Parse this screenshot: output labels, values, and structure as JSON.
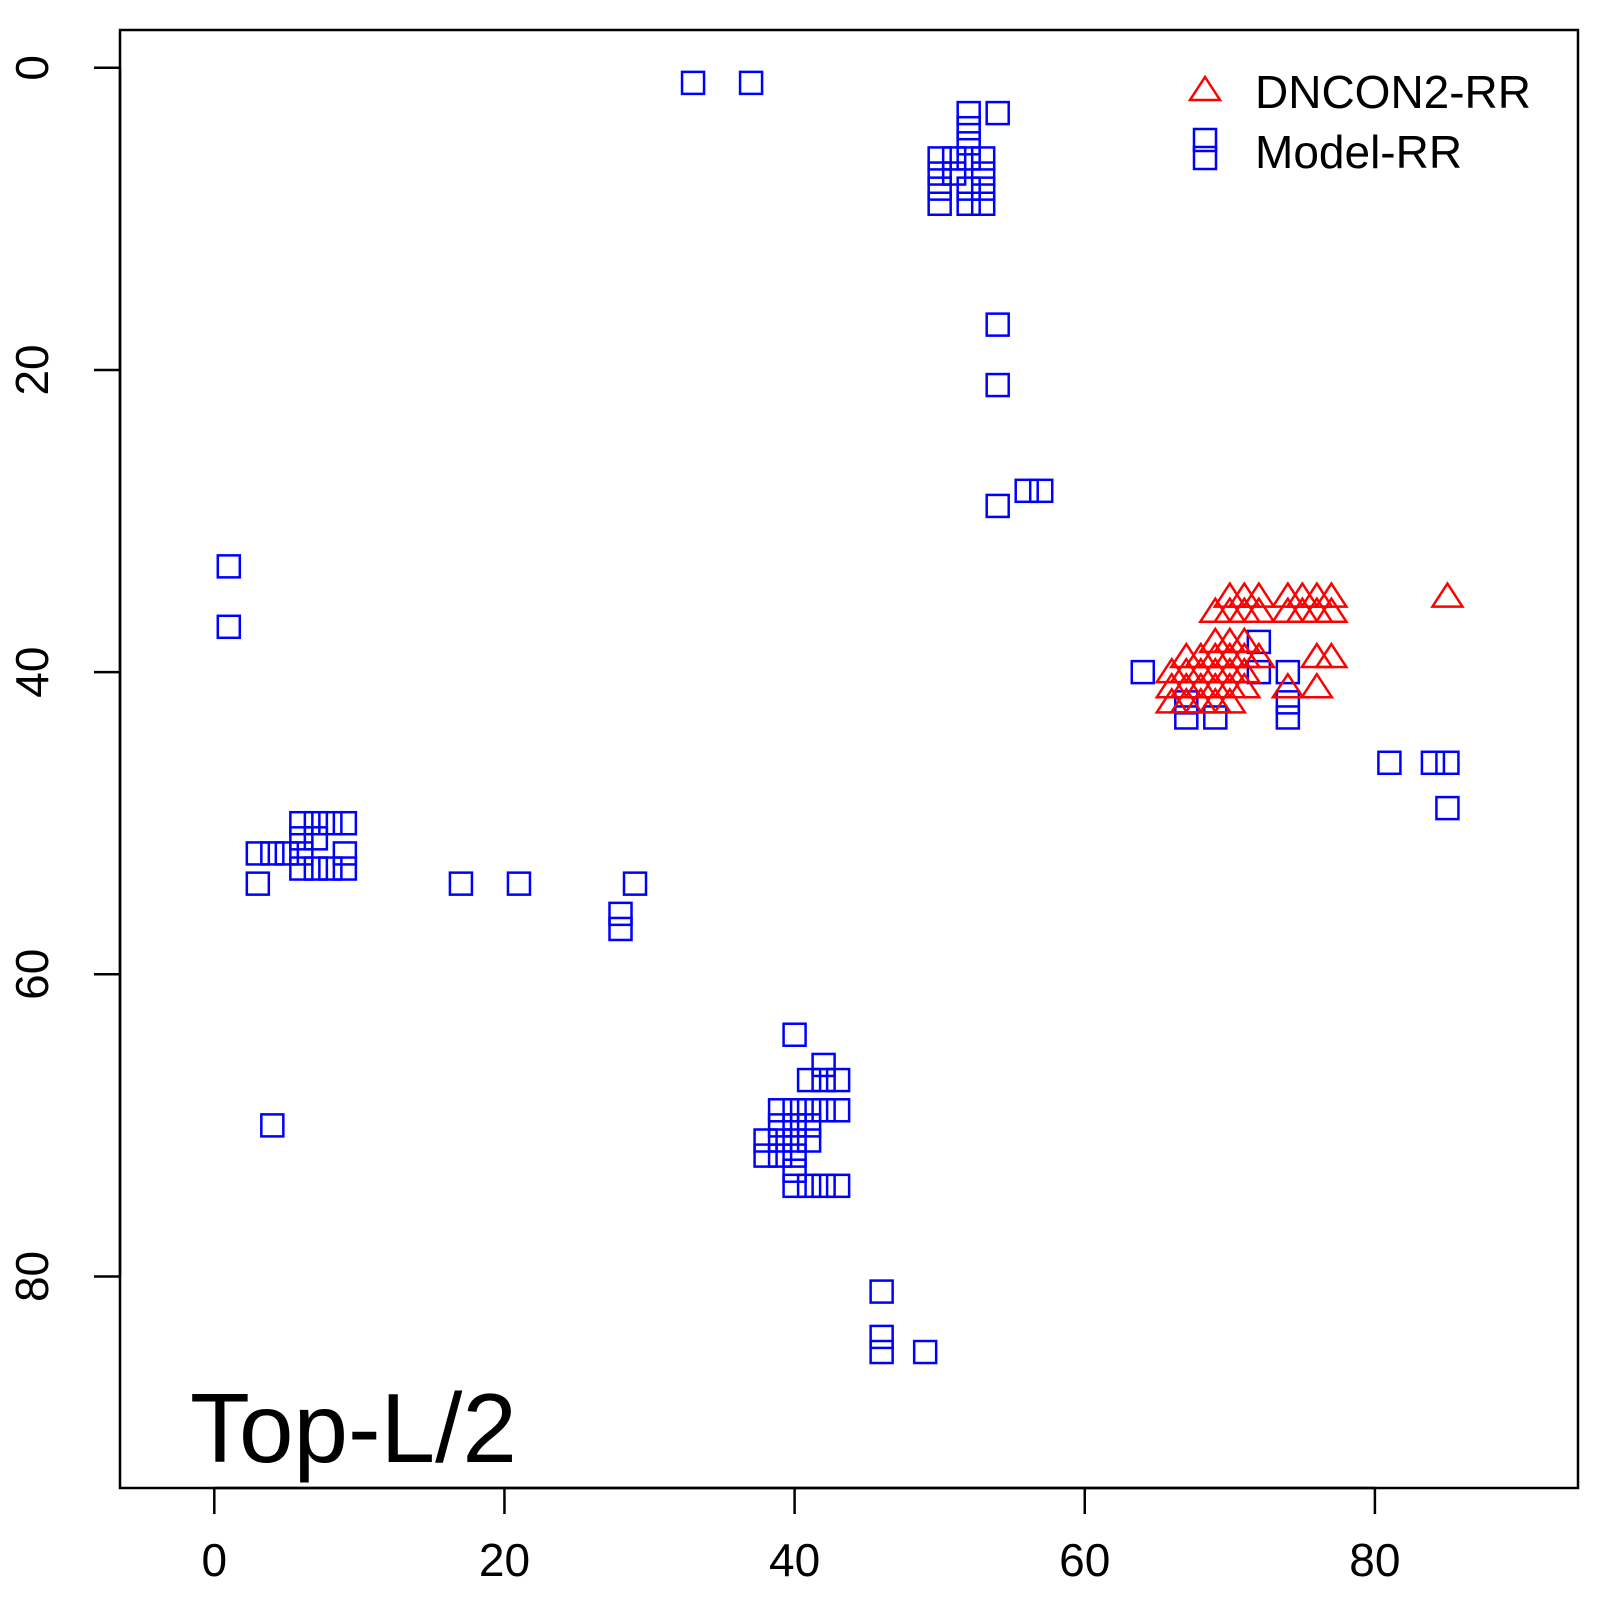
{
  "chart_data": {
    "type": "scatter",
    "title": "",
    "xlabel": "",
    "ylabel": "",
    "xlim": [
      -6.5,
      94
    ],
    "ylim": [
      94,
      -2.5
    ],
    "y_axis_reversed": true,
    "grid": false,
    "legend_position": "top-right",
    "annotation": "Top-L/2",
    "x_ticks": [
      0,
      20,
      40,
      60,
      80
    ],
    "y_ticks": [
      0,
      20,
      40,
      60,
      80
    ],
    "series": [
      {
        "name": "DNCON2-RR",
        "marker": "triangle",
        "color": "#ff0000",
        "points": [
          [
            70,
            35
          ],
          [
            71,
            35
          ],
          [
            72,
            35
          ],
          [
            74,
            35
          ],
          [
            75,
            35
          ],
          [
            76,
            35
          ],
          [
            77,
            35
          ],
          [
            85,
            35
          ],
          [
            69,
            36
          ],
          [
            70,
            36
          ],
          [
            71,
            36
          ],
          [
            72,
            36
          ],
          [
            74,
            36
          ],
          [
            75,
            36
          ],
          [
            76,
            36
          ],
          [
            77,
            36
          ],
          [
            69,
            38
          ],
          [
            70,
            38
          ],
          [
            71,
            38
          ],
          [
            67,
            39
          ],
          [
            68,
            39
          ],
          [
            69,
            39
          ],
          [
            70,
            39
          ],
          [
            71,
            39
          ],
          [
            72,
            39
          ],
          [
            76,
            39
          ],
          [
            77,
            39
          ],
          [
            66,
            40
          ],
          [
            67,
            40
          ],
          [
            68,
            40
          ],
          [
            69,
            40
          ],
          [
            70,
            40
          ],
          [
            71,
            40
          ],
          [
            66,
            41
          ],
          [
            67,
            41
          ],
          [
            68,
            41
          ],
          [
            69,
            41
          ],
          [
            70,
            41
          ],
          [
            71,
            41
          ],
          [
            74,
            41
          ],
          [
            76,
            41
          ],
          [
            66,
            42
          ],
          [
            67,
            42
          ],
          [
            68,
            42
          ],
          [
            69,
            42
          ],
          [
            70,
            42
          ]
        ]
      },
      {
        "name": "Model-RR",
        "marker": "square",
        "color": "#0000ff",
        "points": [
          [
            33,
            1
          ],
          [
            37,
            1
          ],
          [
            52,
            3
          ],
          [
            54,
            3
          ],
          [
            52,
            4
          ],
          [
            52,
            5
          ],
          [
            52,
            6
          ],
          [
            50,
            6
          ],
          [
            51,
            6
          ],
          [
            53,
            6
          ],
          [
            50,
            7
          ],
          [
            51,
            7
          ],
          [
            53,
            7
          ],
          [
            50,
            8
          ],
          [
            52,
            8
          ],
          [
            53,
            8
          ],
          [
            50,
            9
          ],
          [
            52,
            9
          ],
          [
            53,
            9
          ],
          [
            54,
            17
          ],
          [
            54,
            21
          ],
          [
            56,
            28
          ],
          [
            57,
            28
          ],
          [
            54,
            29
          ],
          [
            1,
            33
          ],
          [
            1,
            37
          ],
          [
            72,
            38
          ],
          [
            64,
            40
          ],
          [
            72,
            40
          ],
          [
            74,
            40
          ],
          [
            67,
            42
          ],
          [
            74,
            42
          ],
          [
            67,
            43
          ],
          [
            69,
            43
          ],
          [
            74,
            43
          ],
          [
            81,
            46
          ],
          [
            84,
            46
          ],
          [
            85,
            46
          ],
          [
            85,
            49
          ],
          [
            6,
            50
          ],
          [
            7,
            50
          ],
          [
            8,
            50
          ],
          [
            9,
            50
          ],
          [
            6,
            51
          ],
          [
            7,
            51
          ],
          [
            3,
            52
          ],
          [
            4,
            52
          ],
          [
            5,
            52
          ],
          [
            6,
            52
          ],
          [
            9,
            52
          ],
          [
            6,
            53
          ],
          [
            7,
            53
          ],
          [
            8,
            53
          ],
          [
            9,
            53
          ],
          [
            3,
            54
          ],
          [
            17,
            54
          ],
          [
            21,
            54
          ],
          [
            29,
            54
          ],
          [
            28,
            56
          ],
          [
            28,
            57
          ],
          [
            40,
            64
          ],
          [
            42,
            66
          ],
          [
            41,
            67
          ],
          [
            42,
            67
          ],
          [
            43,
            67
          ],
          [
            39,
            69
          ],
          [
            40,
            69
          ],
          [
            41,
            69
          ],
          [
            42,
            69
          ],
          [
            43,
            69
          ],
          [
            4,
            70
          ],
          [
            39,
            70
          ],
          [
            40,
            70
          ],
          [
            41,
            70
          ],
          [
            38,
            71
          ],
          [
            39,
            71
          ],
          [
            40,
            71
          ],
          [
            41,
            71
          ],
          [
            38,
            72
          ],
          [
            39,
            72
          ],
          [
            40,
            72
          ],
          [
            40,
            73
          ],
          [
            40,
            74
          ],
          [
            41,
            74
          ],
          [
            42,
            74
          ],
          [
            43,
            74
          ],
          [
            46,
            81
          ],
          [
            46,
            84
          ],
          [
            46,
            85
          ],
          [
            49,
            85
          ]
        ]
      }
    ]
  }
}
